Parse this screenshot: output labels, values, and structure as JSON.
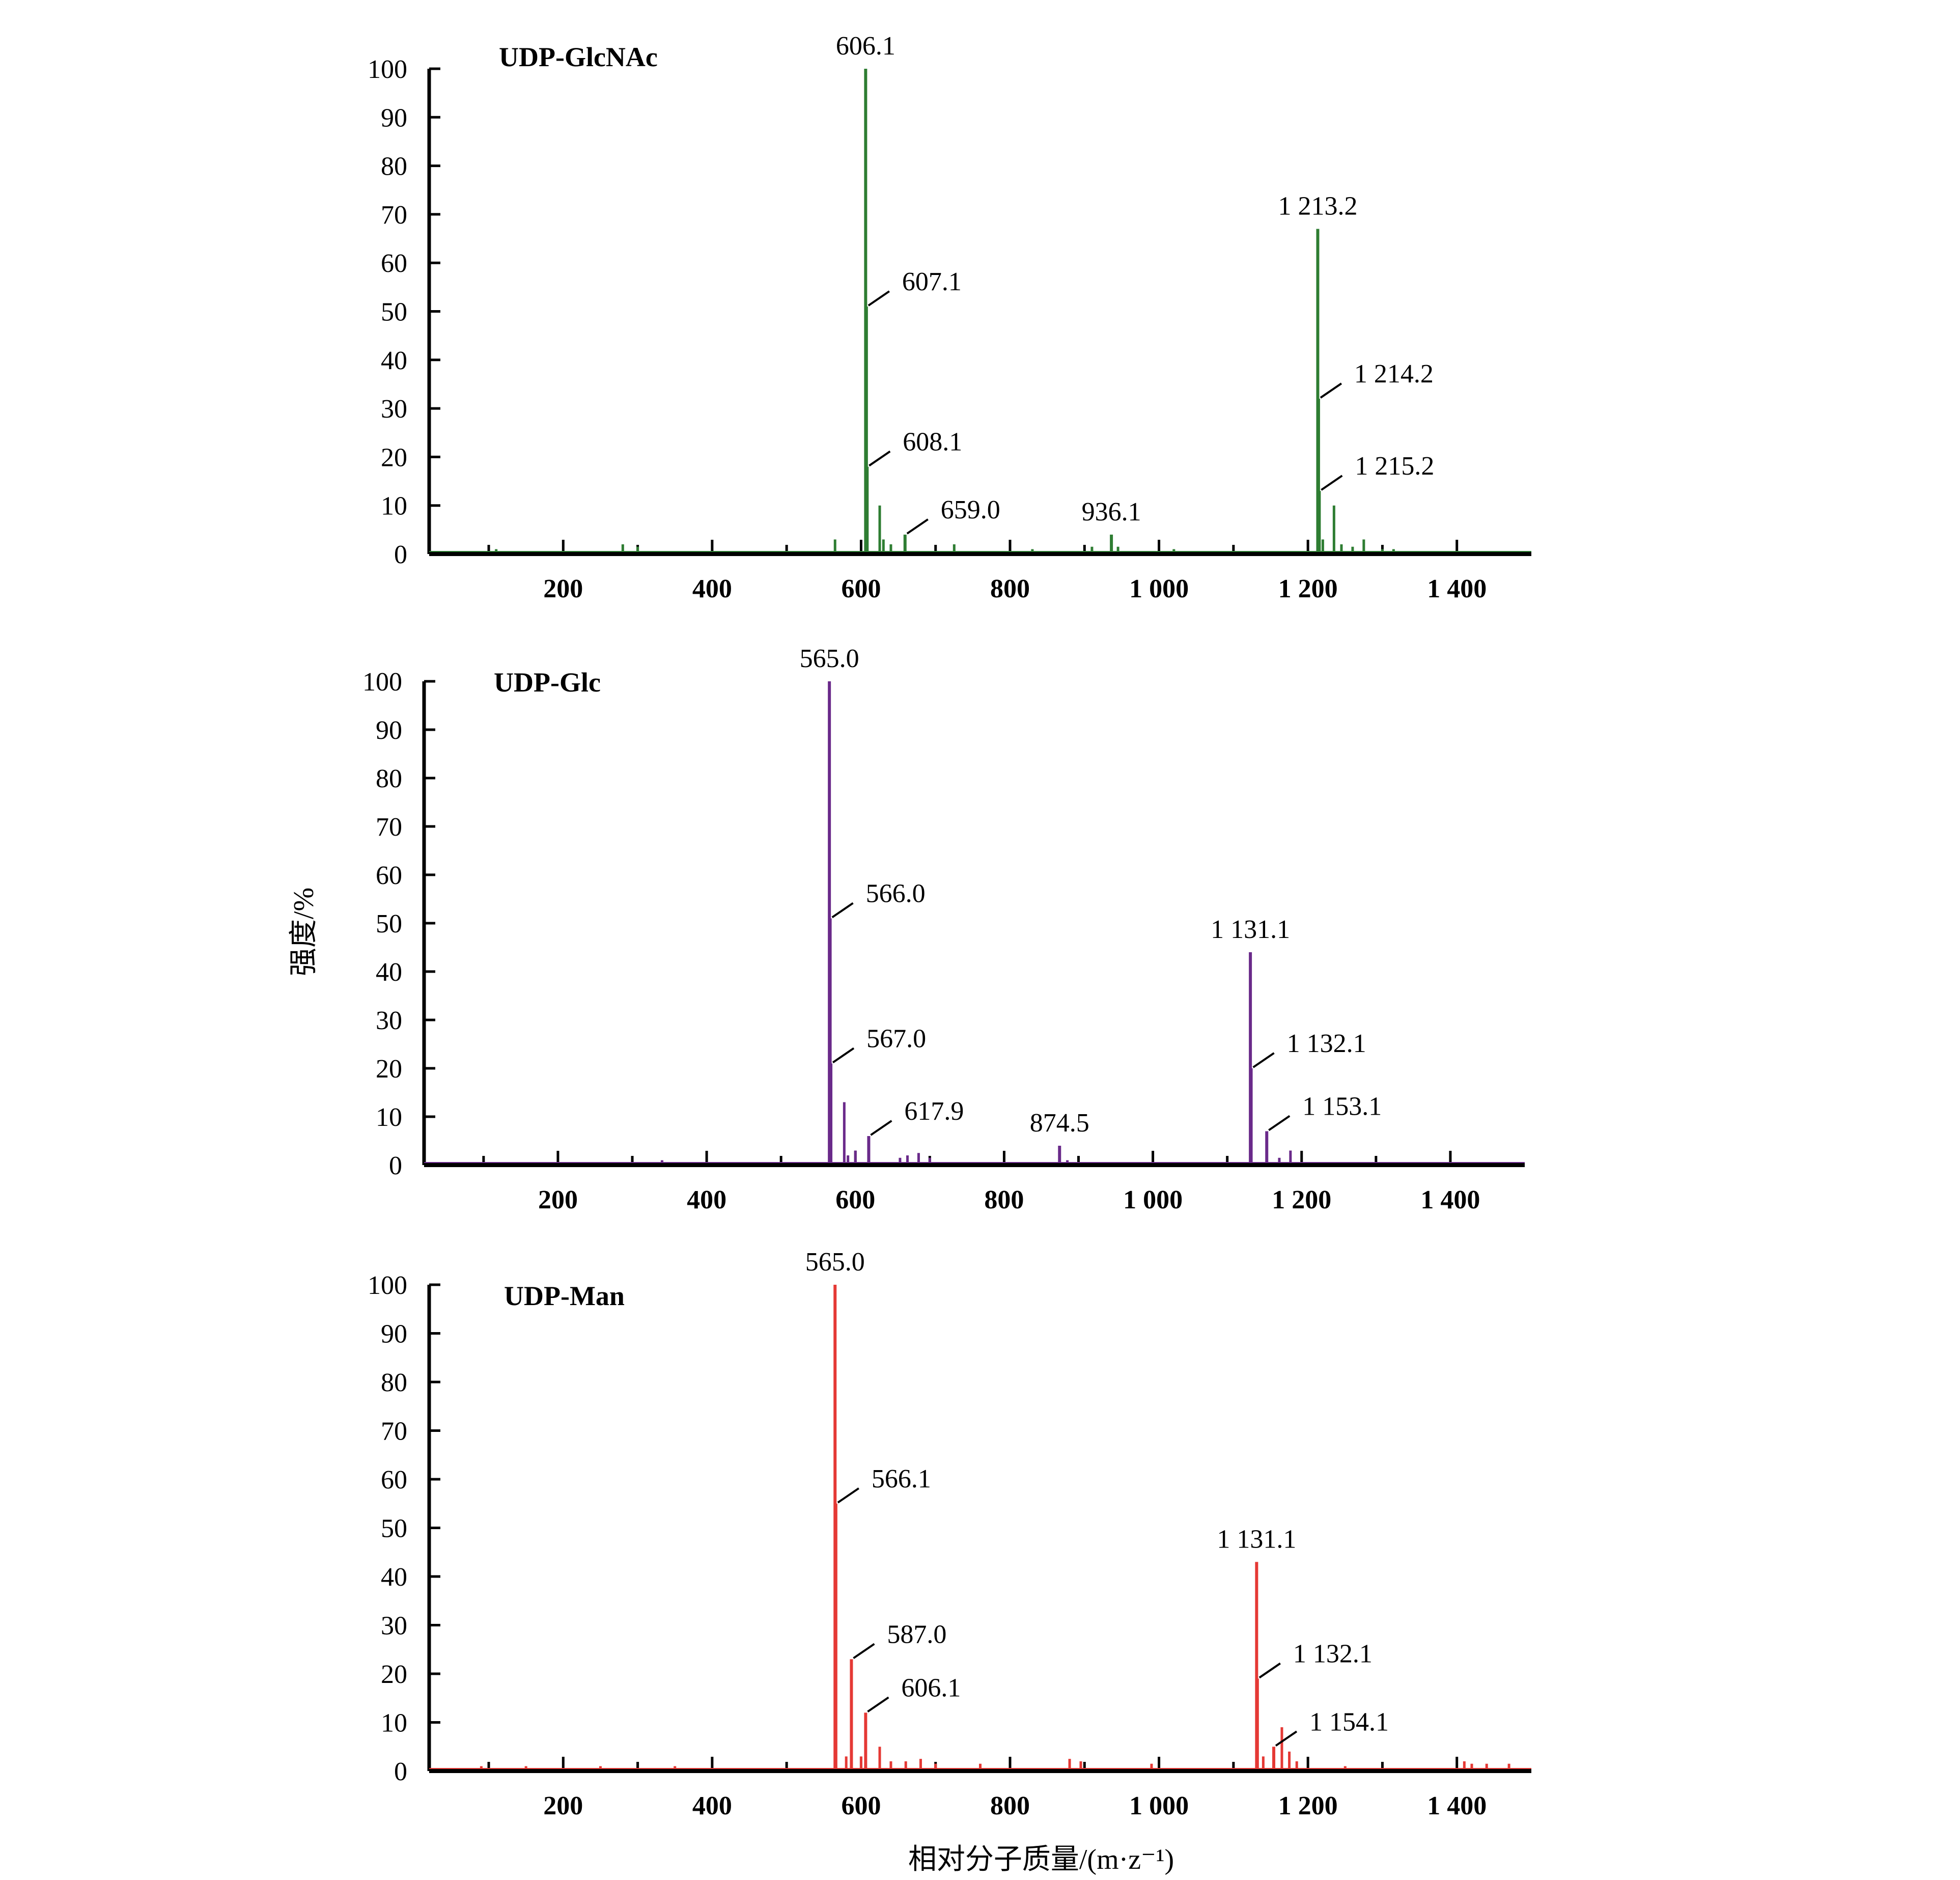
{
  "figure": {
    "ylabel": "强度/%",
    "xlabel": "相对分子质量/(m·z⁻¹)"
  },
  "chart_data": [
    {
      "type": "bar",
      "title": "UDP-GlcNAc",
      "color": "#2e7d32",
      "xlim": [
        20,
        1500
      ],
      "ylim": [
        0,
        100
      ],
      "x_ticks": [
        200,
        400,
        600,
        800,
        1000,
        1200,
        1400
      ],
      "x_tick_labels": [
        "200",
        "400",
        "600",
        "800",
        "1 000",
        "1 200",
        "1 400"
      ],
      "y_ticks": [
        0,
        10,
        20,
        30,
        40,
        50,
        60,
        70,
        80,
        90,
        100
      ],
      "y_tick_labels": [
        "0",
        "10",
        "20",
        "30",
        "40",
        "50",
        "60",
        "70",
        "80",
        "90",
        "100"
      ],
      "peaks": [
        {
          "x": 606.1,
          "y": 100,
          "label": "606.1",
          "style": "top"
        },
        {
          "x": 607.1,
          "y": 51,
          "label": "607.1",
          "style": "side"
        },
        {
          "x": 608.1,
          "y": 18,
          "label": "608.1",
          "style": "side"
        },
        {
          "x": 659.0,
          "y": 4,
          "label": "659.0",
          "style": "side"
        },
        {
          "x": 936.1,
          "y": 4,
          "label": "936.1",
          "style": "top"
        },
        {
          "x": 1213.2,
          "y": 67,
          "label": "1 213.2",
          "style": "top"
        },
        {
          "x": 1214.2,
          "y": 32,
          "label": "1 214.2",
          "style": "side"
        },
        {
          "x": 1215.2,
          "y": 13,
          "label": "1 215.2",
          "style": "side"
        }
      ],
      "minor_peaks": [
        {
          "x": 110,
          "y": 1
        },
        {
          "x": 280,
          "y": 2
        },
        {
          "x": 300,
          "y": 1.5
        },
        {
          "x": 565,
          "y": 3
        },
        {
          "x": 625,
          "y": 10
        },
        {
          "x": 630,
          "y": 3
        },
        {
          "x": 640,
          "y": 2
        },
        {
          "x": 725,
          "y": 2
        },
        {
          "x": 830,
          "y": 1
        },
        {
          "x": 910,
          "y": 1.5
        },
        {
          "x": 945,
          "y": 1.5
        },
        {
          "x": 1020,
          "y": 1
        },
        {
          "x": 1220,
          "y": 3
        },
        {
          "x": 1235,
          "y": 10
        },
        {
          "x": 1245,
          "y": 2
        },
        {
          "x": 1260,
          "y": 1.5
        },
        {
          "x": 1275,
          "y": 3
        },
        {
          "x": 1300,
          "y": 1
        },
        {
          "x": 1315,
          "y": 1
        }
      ]
    },
    {
      "type": "bar",
      "title": "UDP-Glc",
      "color": "#6a2a8a",
      "xlim": [
        20,
        1500
      ],
      "ylim": [
        0,
        100
      ],
      "x_ticks": [
        200,
        400,
        600,
        800,
        1000,
        1200,
        1400
      ],
      "x_tick_labels": [
        "200",
        "400",
        "600",
        "800",
        "1 000",
        "1 200",
        "1 400"
      ],
      "y_ticks": [
        0,
        10,
        20,
        30,
        40,
        50,
        60,
        70,
        80,
        90,
        100
      ],
      "y_tick_labels": [
        "0",
        "10",
        "20",
        "30",
        "40",
        "50",
        "60",
        "70",
        "80",
        "90",
        "100"
      ],
      "peaks": [
        {
          "x": 565.0,
          "y": 100,
          "label": "565.0",
          "style": "top"
        },
        {
          "x": 566.0,
          "y": 51,
          "label": "566.0",
          "style": "side"
        },
        {
          "x": 567.0,
          "y": 21,
          "label": "567.0",
          "style": "side"
        },
        {
          "x": 617.9,
          "y": 6,
          "label": "617.9",
          "style": "side"
        },
        {
          "x": 874.5,
          "y": 4,
          "label": "874.5",
          "style": "top"
        },
        {
          "x": 1131.1,
          "y": 44,
          "label": "1 131.1",
          "style": "top"
        },
        {
          "x": 1132.1,
          "y": 20,
          "label": "1 132.1",
          "style": "side"
        },
        {
          "x": 1153.1,
          "y": 7,
          "label": "1 153.1",
          "style": "side"
        }
      ],
      "minor_peaks": [
        {
          "x": 340,
          "y": 1
        },
        {
          "x": 585,
          "y": 13
        },
        {
          "x": 590,
          "y": 2
        },
        {
          "x": 600,
          "y": 3
        },
        {
          "x": 660,
          "y": 1.5
        },
        {
          "x": 670,
          "y": 2
        },
        {
          "x": 685,
          "y": 2.5
        },
        {
          "x": 700,
          "y": 1.5
        },
        {
          "x": 885,
          "y": 1
        },
        {
          "x": 1170,
          "y": 1.5
        },
        {
          "x": 1185,
          "y": 3
        }
      ]
    },
    {
      "type": "bar",
      "title": "UDP-Man",
      "color": "#e53935",
      "xlim": [
        20,
        1500
      ],
      "ylim": [
        0,
        100
      ],
      "x_ticks": [
        200,
        400,
        600,
        800,
        1000,
        1200,
        1400
      ],
      "x_tick_labels": [
        "200",
        "400",
        "600",
        "800",
        "1 000",
        "1 200",
        "1 400"
      ],
      "y_ticks": [
        0,
        10,
        20,
        30,
        40,
        50,
        60,
        70,
        80,
        90,
        100
      ],
      "y_tick_labels": [
        "0",
        "10",
        "20",
        "30",
        "40",
        "50",
        "60",
        "70",
        "80",
        "90",
        "100"
      ],
      "peaks": [
        {
          "x": 565.0,
          "y": 100,
          "label": "565.0",
          "style": "top"
        },
        {
          "x": 566.1,
          "y": 55,
          "label": "566.1",
          "style": "side"
        },
        {
          "x": 587.0,
          "y": 23,
          "label": "587.0",
          "style": "side"
        },
        {
          "x": 606.1,
          "y": 12,
          "label": "606.1",
          "style": "side"
        },
        {
          "x": 1131.1,
          "y": 43,
          "label": "1 131.1",
          "style": "top"
        },
        {
          "x": 1132.1,
          "y": 19,
          "label": "1 132.1",
          "style": "side"
        },
        {
          "x": 1154.1,
          "y": 5,
          "label": "1 154.1",
          "style": "side"
        }
      ],
      "minor_peaks": [
        {
          "x": 90,
          "y": 1
        },
        {
          "x": 150,
          "y": 1
        },
        {
          "x": 250,
          "y": 1
        },
        {
          "x": 350,
          "y": 1
        },
        {
          "x": 580,
          "y": 3
        },
        {
          "x": 600,
          "y": 3
        },
        {
          "x": 625,
          "y": 5
        },
        {
          "x": 640,
          "y": 2
        },
        {
          "x": 660,
          "y": 2
        },
        {
          "x": 680,
          "y": 2.5
        },
        {
          "x": 700,
          "y": 1.5
        },
        {
          "x": 760,
          "y": 1.5
        },
        {
          "x": 880,
          "y": 2.5
        },
        {
          "x": 895,
          "y": 2
        },
        {
          "x": 990,
          "y": 1.5
        },
        {
          "x": 1140,
          "y": 3
        },
        {
          "x": 1165,
          "y": 9
        },
        {
          "x": 1175,
          "y": 4
        },
        {
          "x": 1185,
          "y": 2
        },
        {
          "x": 1250,
          "y": 1
        },
        {
          "x": 1410,
          "y": 2
        },
        {
          "x": 1420,
          "y": 1.5
        },
        {
          "x": 1440,
          "y": 1.5
        },
        {
          "x": 1470,
          "y": 1.5
        }
      ]
    }
  ]
}
